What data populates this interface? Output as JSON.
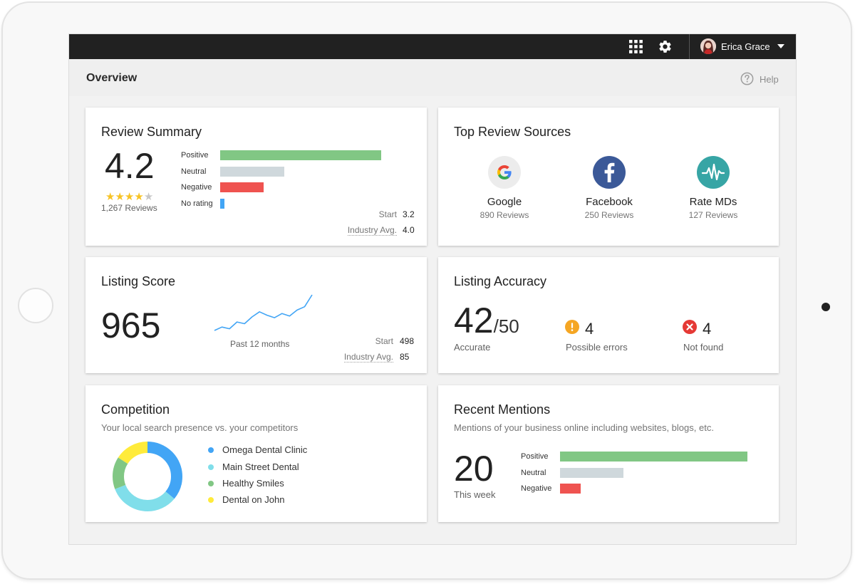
{
  "topbar": {
    "user_name": "Erica Grace",
    "icons": [
      "apps-grid-icon",
      "gear-icon",
      "chevron-down-icon"
    ]
  },
  "header": {
    "page_title": "Overview",
    "help_label": "Help"
  },
  "review_summary": {
    "title": "Review Summary",
    "score": "4.2",
    "rating_stars": 4,
    "reviews_label": "1,267 Reviews",
    "bars": [
      {
        "label": "Positive",
        "value": 0.78,
        "color": "#81c784"
      },
      {
        "label": "Neutral",
        "value": 0.31,
        "color": "#cfd8dc"
      },
      {
        "label": "Negative",
        "value": 0.21,
        "color": "#ef5350"
      },
      {
        "label": "No rating",
        "value": 0.02,
        "color": "#42a5f5"
      }
    ],
    "start_label": "Start",
    "start_value": "3.2",
    "industry_label": "Industry Avg.",
    "industry_value": "4.0"
  },
  "top_sources": {
    "title": "Top Review Sources",
    "sources": [
      {
        "name": "Google",
        "count": "890 Reviews",
        "icon": "google-icon"
      },
      {
        "name": "Facebook",
        "count": "250 Reviews",
        "icon": "facebook-icon",
        "color": "#3b5998"
      },
      {
        "name": "Rate MDs",
        "count": "127 Reviews",
        "icon": "ratemds-icon",
        "color": "#37a5a5"
      }
    ]
  },
  "listing_score": {
    "title": "Listing Score",
    "score": "965",
    "sparkline_caption": "Past 12 months",
    "sparkline": [
      12,
      16,
      14,
      22,
      20,
      28,
      34,
      30,
      27,
      32,
      29,
      36,
      40,
      54
    ],
    "start_label": "Start",
    "start_value": "498",
    "industry_label": "Industry Avg.",
    "industry_value": "85"
  },
  "listing_accuracy": {
    "title": "Listing Accuracy",
    "accurate": "42",
    "total": "/50",
    "accurate_label": "Accurate",
    "errors_value": "4",
    "errors_label": "Possible errors",
    "not_found_value": "4",
    "not_found_label": "Not found",
    "colors": {
      "warning": "#f5a623",
      "error": "#e53935"
    }
  },
  "competition": {
    "title": "Competition",
    "subtitle": "Your local search presence vs. your competitors",
    "competitors": [
      {
        "name": "Omega Dental Clinic",
        "share": 0.36,
        "color": "#42a5f5"
      },
      {
        "name": "Main Street Dental",
        "share": 0.33,
        "color": "#80deea"
      },
      {
        "name": "Healthy Smiles",
        "share": 0.15,
        "color": "#81c784"
      },
      {
        "name": "Dental on John",
        "share": 0.16,
        "color": "#ffeb3b"
      }
    ]
  },
  "recent_mentions": {
    "title": "Recent Mentions",
    "subtitle": "Mentions of your business online including websites, blogs, etc.",
    "count": "20",
    "period_label": "This week",
    "bars": [
      {
        "label": "Positive",
        "value": 0.92,
        "color": "#81c784"
      },
      {
        "label": "Neutral",
        "value": 0.31,
        "color": "#cfd8dc"
      },
      {
        "label": "Negative",
        "value": 0.1,
        "color": "#ef5350"
      }
    ]
  }
}
